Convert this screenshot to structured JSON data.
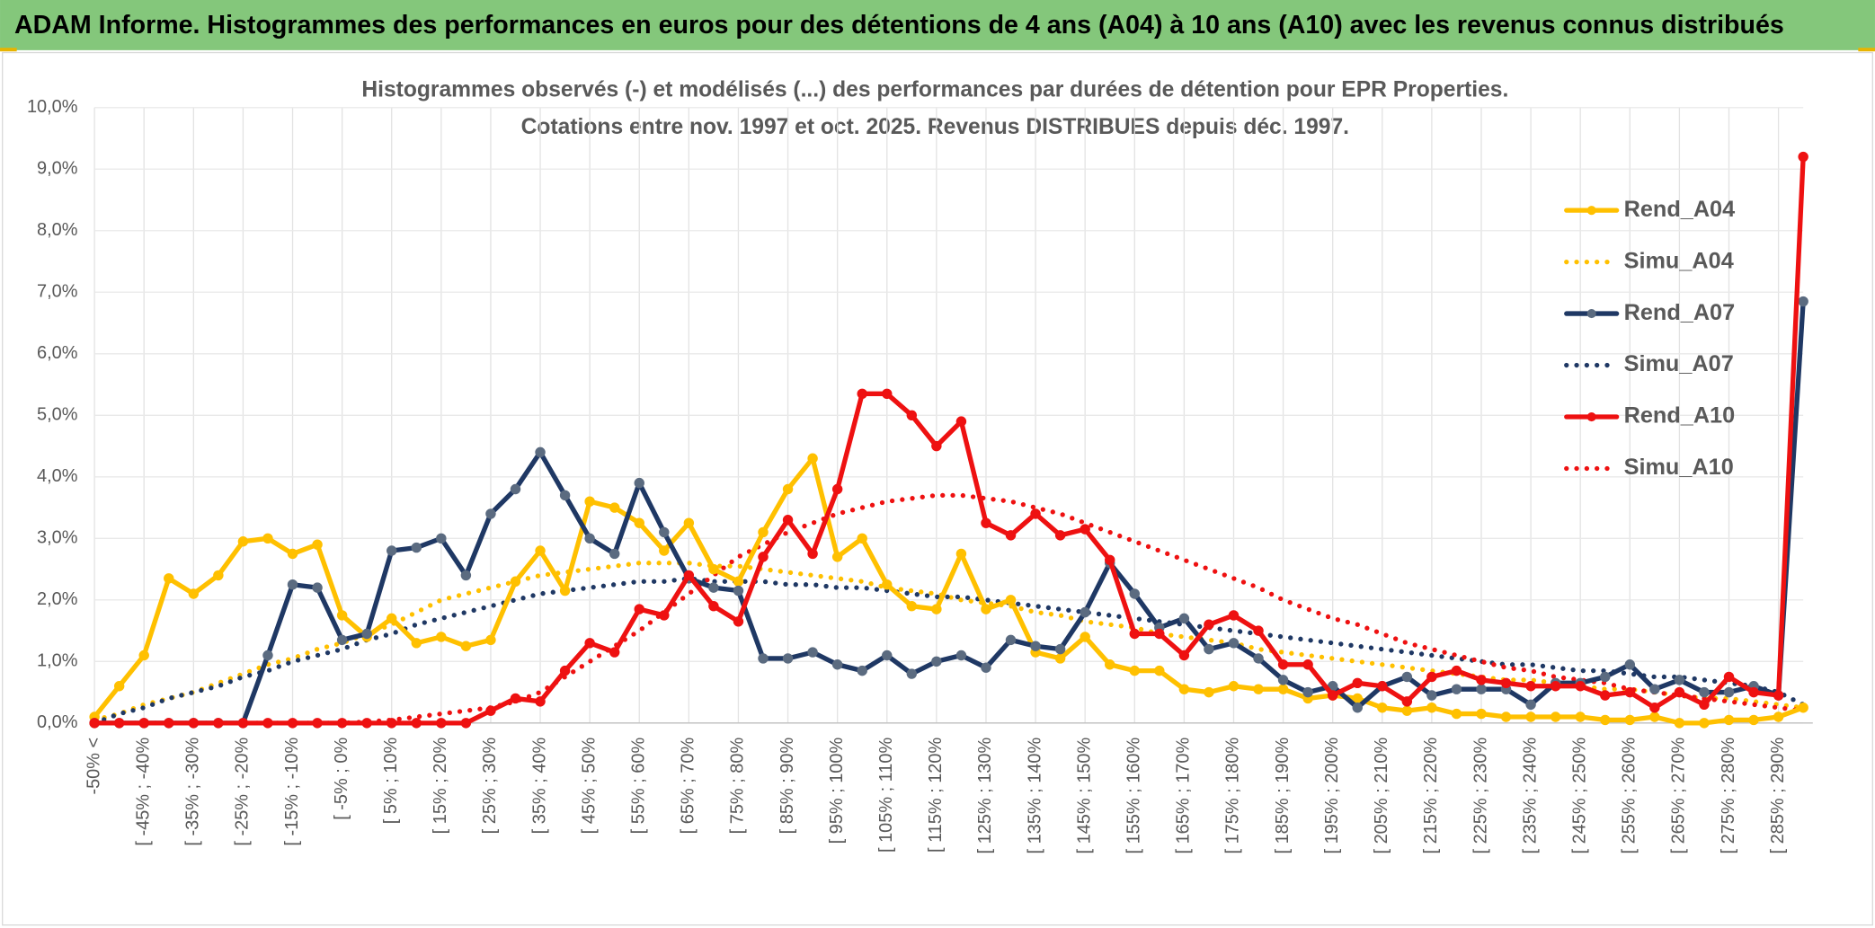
{
  "header": {
    "title": "ADAM Informe. Histogrammes des performances en euros pour des détentions de 4 ans (A04) à 10 ans (A10) avec les revenus connus distribués"
  },
  "chart_data": {
    "type": "line",
    "title": "Histogrammes observés (-) et modélisés (...) des performances par durées de détention pour EPR Properties.",
    "subtitle": "Cotations entre nov. 1997 et oct. 2025. Revenus DISTRIBUES depuis déc. 1997.",
    "categories": [
      "-50% <",
      null,
      "[ -45% ; -40%",
      null,
      "[ -35% ; -30%",
      null,
      "[ -25% ; -20%",
      null,
      "[ -15% ; -10%",
      null,
      "[ -5% ; 0%",
      null,
      "[ 5% ; 10%",
      null,
      "[ 15% ; 20%",
      null,
      "[ 25% ; 30%",
      null,
      "[ 35% ; 40%",
      null,
      "[ 45% ; 50%",
      null,
      "[ 55% ; 60%",
      null,
      "[ 65% ; 70%",
      null,
      "[ 75% ; 80%",
      null,
      "[ 85% ; 90%",
      null,
      "[ 95% ; 100%",
      null,
      "[ 105% ; 110%",
      null,
      "[ 115% ; 120%",
      null,
      "[ 125% ; 130%",
      null,
      "[ 135% ; 140%",
      null,
      "[ 145% ; 150%",
      null,
      "[ 155% ; 160%",
      null,
      "[ 165% ; 170%",
      null,
      "[ 175% ; 180%",
      null,
      "[ 185% ; 190%",
      null,
      "[ 195% ; 200%",
      null,
      "[ 205% ; 210%",
      null,
      "[ 215% ; 220%",
      null,
      "[ 225% ; 230%",
      null,
      "[ 235% ; 240%",
      null,
      "[ 245% ; 250%",
      null,
      "[ 255% ; 260%",
      null,
      "[ 265% ; 270%",
      null,
      "[ 275% ; 280%",
      null,
      "[ 285% ; 290%",
      null
    ],
    "ylim": [
      0,
      10
    ],
    "yticks": [
      {
        "value": 0,
        "label": "0,0%"
      },
      {
        "value": 1,
        "label": "1,0%"
      },
      {
        "value": 2,
        "label": "2,0%"
      },
      {
        "value": 3,
        "label": "3,0%"
      },
      {
        "value": 4,
        "label": "4,0%"
      },
      {
        "value": 5,
        "label": "5,0%"
      },
      {
        "value": 6,
        "label": "6,0%"
      },
      {
        "value": 7,
        "label": "7,0%"
      },
      {
        "value": 8,
        "label": "8,0%"
      },
      {
        "value": 9,
        "label": "9,0%"
      },
      {
        "value": 10,
        "label": "10,0%"
      }
    ],
    "grid": true,
    "legend": "upper right",
    "series": [
      {
        "name": "Rend_A04",
        "color": "#ffc000",
        "style": "solid",
        "markers": true,
        "values": [
          0.1,
          0.6,
          1.1,
          2.35,
          2.1,
          2.4,
          2.95,
          3.0,
          2.75,
          2.9,
          1.75,
          1.4,
          1.7,
          1.3,
          1.4,
          1.25,
          1.35,
          2.3,
          2.8,
          2.15,
          3.6,
          3.5,
          3.25,
          2.8,
          3.25,
          2.5,
          2.3,
          3.1,
          3.8,
          4.3,
          2.7,
          3.0,
          2.25,
          1.9,
          1.85,
          2.75,
          1.85,
          2.0,
          1.15,
          1.05,
          1.4,
          0.95,
          0.85,
          0.85,
          0.55,
          0.5,
          0.6,
          0.55,
          0.55,
          0.4,
          0.45,
          0.4,
          0.25,
          0.2,
          0.25,
          0.15,
          0.15,
          0.1,
          0.1,
          0.1,
          0.1,
          0.05,
          0.05,
          0.1,
          0.0,
          0.0,
          0.05,
          0.05,
          0.1,
          0.25
        ]
      },
      {
        "name": "Simu_A04",
        "color": "#ffc000",
        "style": "dotted",
        "markers": false,
        "values": [
          0.05,
          0.15,
          0.3,
          0.4,
          0.5,
          0.65,
          0.8,
          0.95,
          1.05,
          1.2,
          1.3,
          1.45,
          1.6,
          1.8,
          2.0,
          2.1,
          2.2,
          2.3,
          2.4,
          2.45,
          2.5,
          2.55,
          2.6,
          2.6,
          2.6,
          2.55,
          2.55,
          2.5,
          2.45,
          2.4,
          2.35,
          2.3,
          2.2,
          2.15,
          2.1,
          2.0,
          1.95,
          1.9,
          1.8,
          1.75,
          1.65,
          1.6,
          1.55,
          1.45,
          1.4,
          1.35,
          1.3,
          1.2,
          1.15,
          1.1,
          1.05,
          1.0,
          0.95,
          0.9,
          0.85,
          0.8,
          0.75,
          0.7,
          0.7,
          0.65,
          0.6,
          0.55,
          0.55,
          0.5,
          0.45,
          0.4,
          0.4,
          0.35,
          0.3,
          0.25
        ]
      },
      {
        "name": "Rend_A07",
        "color": "#1f3864",
        "marker_color": "#5b6b80",
        "style": "solid",
        "markers": true,
        "values": [
          0,
          0,
          0,
          0,
          0,
          0,
          0,
          1.1,
          2.25,
          2.2,
          1.35,
          1.45,
          2.8,
          2.85,
          3.0,
          2.4,
          3.4,
          3.8,
          4.4,
          3.7,
          3.0,
          2.75,
          3.9,
          3.1,
          2.35,
          2.2,
          2.15,
          1.05,
          1.05,
          1.15,
          0.95,
          0.85,
          1.1,
          0.8,
          1.0,
          1.1,
          0.9,
          1.35,
          1.25,
          1.2,
          1.8,
          2.6,
          2.1,
          1.55,
          1.7,
          1.2,
          1.3,
          1.05,
          0.7,
          0.5,
          0.6,
          0.25,
          0.6,
          0.75,
          0.45,
          0.55,
          0.55,
          0.55,
          0.3,
          0.65,
          0.65,
          0.75,
          0.95,
          0.55,
          0.7,
          0.5,
          0.5,
          0.6,
          0.45,
          6.85
        ]
      },
      {
        "name": "Simu_A07",
        "color": "#1f3864",
        "style": "dotted",
        "markers": false,
        "values": [
          0.0,
          0.15,
          0.25,
          0.4,
          0.5,
          0.6,
          0.75,
          0.85,
          1.0,
          1.1,
          1.2,
          1.35,
          1.45,
          1.6,
          1.7,
          1.8,
          1.9,
          2.0,
          2.1,
          2.15,
          2.2,
          2.25,
          2.3,
          2.3,
          2.35,
          2.3,
          2.3,
          2.3,
          2.25,
          2.25,
          2.2,
          2.2,
          2.15,
          2.1,
          2.05,
          2.05,
          2.0,
          1.95,
          1.9,
          1.85,
          1.8,
          1.75,
          1.7,
          1.65,
          1.6,
          1.55,
          1.5,
          1.45,
          1.4,
          1.35,
          1.3,
          1.25,
          1.2,
          1.15,
          1.1,
          1.05,
          1.0,
          0.95,
          0.95,
          0.9,
          0.85,
          0.85,
          0.8,
          0.75,
          0.75,
          0.7,
          0.65,
          0.6,
          0.5,
          0.3
        ]
      },
      {
        "name": "Rend_A10",
        "color": "#ee1111",
        "style": "solid",
        "markers": true,
        "values": [
          0,
          0,
          0,
          0,
          0,
          0,
          0,
          0,
          0,
          0,
          0,
          0,
          0,
          0,
          0,
          0,
          0.2,
          0.4,
          0.35,
          0.85,
          1.3,
          1.15,
          1.85,
          1.75,
          2.4,
          1.9,
          1.65,
          2.7,
          3.3,
          2.75,
          3.8,
          5.35,
          5.35,
          5.0,
          4.5,
          4.9,
          3.25,
          3.05,
          3.4,
          3.05,
          3.15,
          2.65,
          1.45,
          1.45,
          1.1,
          1.6,
          1.75,
          1.5,
          0.95,
          0.95,
          0.45,
          0.65,
          0.6,
          0.35,
          0.75,
          0.85,
          0.7,
          0.65,
          0.6,
          0.6,
          0.6,
          0.45,
          0.5,
          0.25,
          0.5,
          0.3,
          0.75,
          0.5,
          0.45,
          9.2
        ]
      },
      {
        "name": "Simu_A10",
        "color": "#ee1111",
        "style": "dotted",
        "markers": false,
        "values": [
          0,
          0,
          0,
          0,
          0,
          0,
          0,
          0,
          0,
          0,
          0,
          0.02,
          0.05,
          0.1,
          0.15,
          0.2,
          0.25,
          0.35,
          0.5,
          0.75,
          1.0,
          1.25,
          1.5,
          1.8,
          2.1,
          2.4,
          2.7,
          2.9,
          3.1,
          3.25,
          3.4,
          3.5,
          3.6,
          3.65,
          3.7,
          3.7,
          3.65,
          3.6,
          3.5,
          3.4,
          3.25,
          3.1,
          2.95,
          2.8,
          2.65,
          2.5,
          2.35,
          2.2,
          2.0,
          1.85,
          1.7,
          1.6,
          1.45,
          1.3,
          1.2,
          1.1,
          1.0,
          0.9,
          0.85,
          0.75,
          0.7,
          0.65,
          0.55,
          0.5,
          0.45,
          0.4,
          0.35,
          0.3,
          0.25,
          0.2
        ]
      }
    ]
  }
}
